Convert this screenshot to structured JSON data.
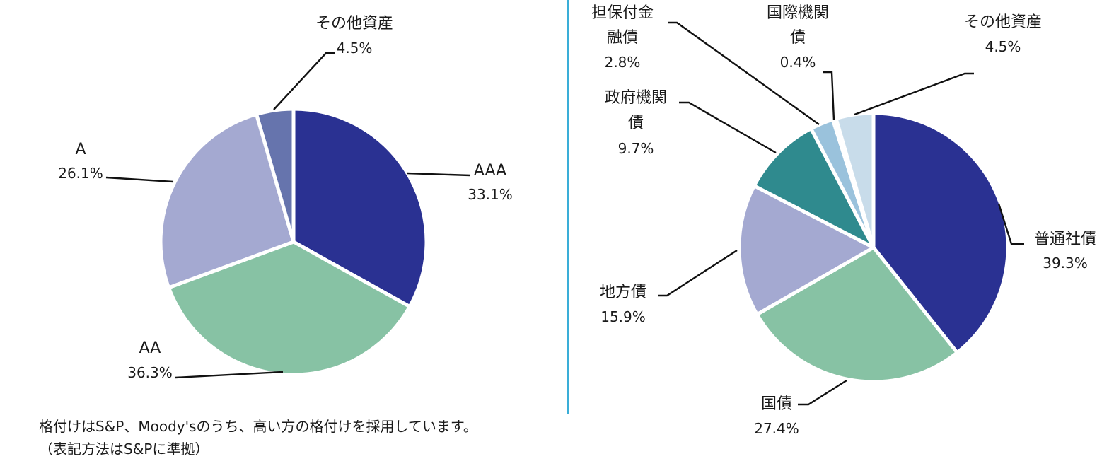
{
  "chart_data": [
    {
      "type": "pie",
      "slices": [
        {
          "label": "AAA",
          "value": 33.1,
          "value_label": "33.1%",
          "color": "#2a3192"
        },
        {
          "label": "AA",
          "value": 36.3,
          "value_label": "36.3%",
          "color": "#87c2a4"
        },
        {
          "label": "A",
          "value": 26.1,
          "value_label": "26.1%",
          "color": "#a4a9d1"
        },
        {
          "label": "その他資産",
          "value": 4.5,
          "value_label": "4.5%",
          "color": "#6674ad"
        }
      ]
    },
    {
      "type": "pie",
      "slices": [
        {
          "label": "普通社債",
          "value": 39.3,
          "value_label": "39.3%",
          "color": "#2a3192"
        },
        {
          "label": "国債",
          "value": 27.4,
          "value_label": "27.4%",
          "color": "#87c2a4"
        },
        {
          "label": "地方債",
          "value": 15.9,
          "value_label": "15.9%",
          "color": "#a4a9d1"
        },
        {
          "label": "政府機関債",
          "value": 9.7,
          "value_label": "9.7%",
          "color": "#2f8a8e"
        },
        {
          "label": "担保付金融債",
          "value": 2.8,
          "value_label": "2.8%",
          "color": "#9ac2dc"
        },
        {
          "label": "国際機関債",
          "value": 0.4,
          "value_label": "0.4%",
          "color": "#dbe8f2"
        },
        {
          "label": "その他資産",
          "value": 4.5,
          "value_label": "4.5%",
          "color": "#c8dcea"
        }
      ]
    }
  ],
  "note": {
    "line1": "格付けはS&P、Moody'sのうち、高い方の格付けを採用しています。",
    "line2": "（表記方法はS&Pに準拠）"
  },
  "divider_color": "#3aaed8"
}
